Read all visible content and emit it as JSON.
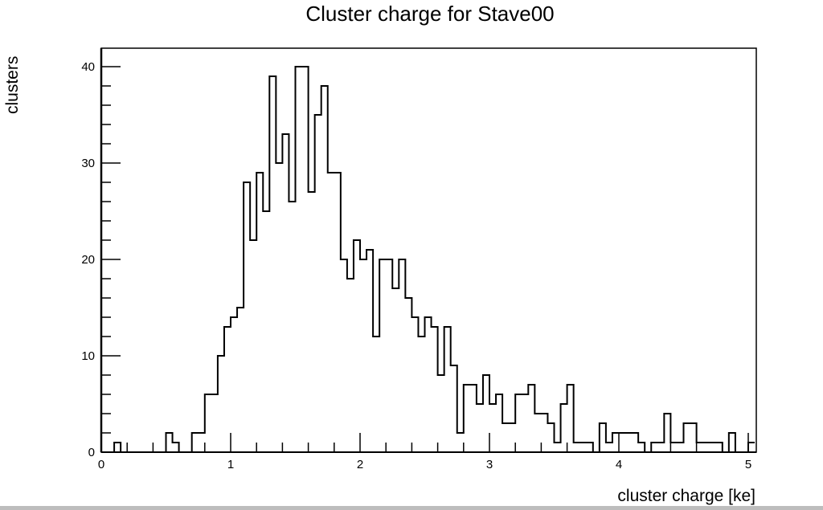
{
  "chart_data": {
    "type": "bar",
    "subtype": "histogram-step",
    "title": "Cluster charge for Stave00",
    "xlabel": "cluster charge [ke]",
    "ylabel": "clusters",
    "xlim": [
      0,
      5.07
    ],
    "ylim": [
      0,
      42
    ],
    "x_ticks": [
      "0",
      "1",
      "2",
      "3",
      "4",
      "5"
    ],
    "y_ticks": [
      "0",
      "10",
      "20",
      "30",
      "40"
    ],
    "grid": false,
    "legend": null,
    "bin_width": 0.05,
    "bin_edges_start": 0.0,
    "values": [
      0,
      0,
      1,
      0,
      0,
      0,
      0,
      0,
      0,
      0,
      2,
      1,
      0,
      0,
      2,
      2,
      6,
      6,
      10,
      13,
      14,
      15,
      28,
      22,
      29,
      25,
      39,
      30,
      33,
      26,
      40,
      40,
      27,
      35,
      38,
      29,
      29,
      20,
      18,
      22,
      20,
      21,
      12,
      20,
      20,
      17,
      20,
      16,
      14,
      12,
      14,
      13,
      8,
      13,
      9,
      2,
      7,
      7,
      5,
      8,
      5,
      6,
      3,
      3,
      6,
      6,
      7,
      4,
      4,
      3,
      1,
      5,
      7,
      1,
      1,
      1,
      0,
      3,
      1,
      2,
      2,
      2,
      2,
      1,
      0,
      1,
      1,
      4,
      1,
      1,
      3,
      3,
      1,
      1,
      1,
      1,
      0,
      2,
      0,
      0,
      1
    ]
  },
  "labels": {
    "title": "Cluster charge for Stave00",
    "xlabel": "cluster charge [ke]",
    "ylabel": "clusters"
  }
}
